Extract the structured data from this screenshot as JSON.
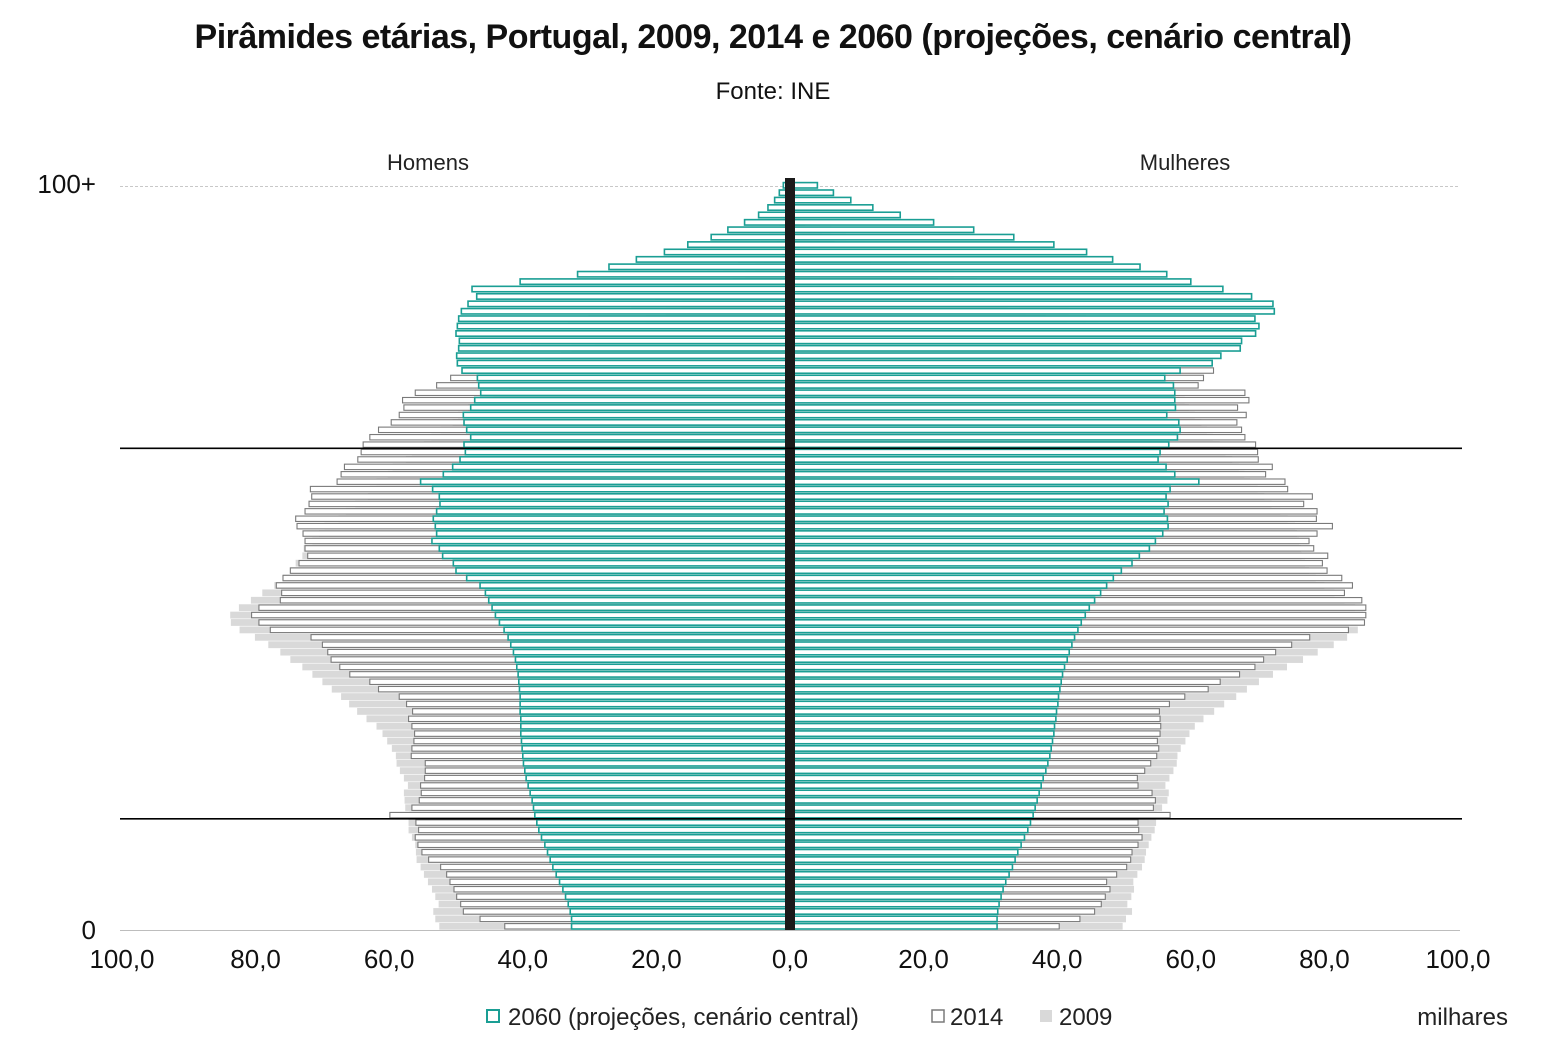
{
  "title": "Pirâmides etárias, Portugal, 2009, 2014 e 2060 (projeções, cenário central)",
  "subtitle": "Fonte: INE",
  "chart_data": {
    "type": "bar",
    "orientation": "horizontal-population-pyramid",
    "age_labels": {
      "top": "100+",
      "bottom": "0"
    },
    "sides": {
      "left": "Homens",
      "right": "Mulheres"
    },
    "x_ticks": [
      "100,0",
      "80,0",
      "60,0",
      "40,0",
      "20,0",
      "0,0",
      "20,0",
      "40,0",
      "60,0",
      "80,0",
      "100,0"
    ],
    "x_range": [
      0,
      100
    ],
    "unit": "milhares",
    "reference_lines_age": [
      15,
      65
    ],
    "ages": [
      0,
      1,
      2,
      3,
      4,
      5,
      6,
      7,
      8,
      9,
      10,
      11,
      12,
      13,
      14,
      15,
      16,
      17,
      18,
      19,
      20,
      21,
      22,
      23,
      24,
      25,
      26,
      27,
      28,
      29,
      30,
      31,
      32,
      33,
      34,
      35,
      36,
      37,
      38,
      39,
      40,
      41,
      42,
      43,
      44,
      45,
      46,
      47,
      48,
      49,
      50,
      51,
      52,
      53,
      54,
      55,
      56,
      57,
      58,
      59,
      60,
      61,
      62,
      63,
      64,
      65,
      66,
      67,
      68,
      69,
      70,
      71,
      72,
      73,
      74,
      75,
      76,
      77,
      78,
      79,
      80,
      81,
      82,
      83,
      84,
      85,
      86,
      87,
      88,
      89,
      90,
      91,
      92,
      93,
      94,
      95,
      96,
      97,
      98,
      99,
      100
    ],
    "series": [
      {
        "name": "2009",
        "style": "filled-gray",
        "men": [
          52.5,
          53.1,
          53.4,
          52.6,
          53.1,
          53.6,
          54.2,
          54.8,
          55.3,
          55.9,
          56.0,
          56.1,
          56.6,
          57.1,
          57.1,
          57.0,
          57.6,
          57.7,
          57.8,
          57.2,
          57.8,
          58.4,
          58.9,
          59.0,
          59.6,
          60.3,
          61.0,
          61.9,
          63.4,
          64.8,
          66.0,
          67.2,
          68.6,
          70.0,
          71.5,
          73.0,
          74.8,
          76.3,
          78.1,
          80.1,
          82.4,
          83.7,
          83.8,
          82.5,
          80.7,
          79.0,
          77.2,
          75.9,
          74.8,
          74.0,
          73.0,
          72.8,
          71.5,
          70.5,
          69.7,
          67.6,
          66.5,
          65.1,
          63.2,
          62.9,
          61.9,
          60.2,
          59.5,
          57.5,
          56.6,
          54.8,
          53.7,
          52.3,
          50.5,
          49.7,
          48.2,
          46.4,
          44.4,
          42.0,
          40.7,
          39.2,
          36.7,
          34.3,
          32.7,
          29.2,
          26.8,
          24.3,
          21.6,
          18.6,
          16.2,
          13.3,
          10.7,
          8.6,
          6.7,
          5.2,
          3.9,
          2.8,
          2.0,
          1.4,
          0.9,
          0.6,
          0.4,
          0.2,
          0.1,
          0.1,
          0.0
        ],
        "women": [
          49.8,
          50.3,
          51.2,
          50.5,
          51.1,
          51.5,
          51.4,
          52.0,
          52.7,
          53.1,
          53.3,
          53.7,
          54.1,
          54.6,
          54.8,
          54.9,
          55.7,
          56.5,
          56.7,
          56.2,
          56.8,
          57.4,
          57.9,
          58.0,
          58.5,
          59.2,
          59.8,
          60.6,
          61.9,
          63.5,
          65.0,
          66.8,
          68.4,
          70.2,
          72.3,
          74.4,
          76.8,
          79.0,
          81.4,
          83.4,
          85.0,
          86.0,
          85.8,
          84.6,
          83.0,
          81.5,
          80.0,
          78.7,
          77.7,
          77.1,
          76.6,
          76.5,
          76.2,
          75.9,
          75.6,
          74.5,
          73.4,
          72.1,
          71.0,
          70.0,
          68.9,
          68.0,
          67.2,
          66.2,
          65.2,
          64.3,
          63.3,
          62.4,
          61.6,
          60.6,
          59.7,
          59.1,
          58.3,
          57.1,
          56.5,
          55.6,
          53.9,
          52.3,
          51.0,
          49.3,
          48.4,
          46.2,
          44.3,
          41.7,
          38.9,
          35.3,
          31.7,
          28.0,
          24.5,
          20.8,
          17.6,
          14.2,
          11.2,
          8.4,
          6.2,
          4.5,
          3.1,
          2.1,
          1.4,
          0.9,
          0.5
        ]
      },
      {
        "name": "2014",
        "style": "outline-gray",
        "men": [
          42.7,
          46.4,
          48.9,
          49.3,
          49.9,
          50.3,
          50.9,
          51.4,
          52.3,
          54.1,
          55.1,
          55.7,
          56.1,
          55.6,
          56.0,
          59.9,
          56.6,
          55.5,
          55.2,
          55.3,
          54.7,
          54.6,
          54.6,
          56.7,
          56.6,
          56.3,
          56.2,
          56.6,
          57.1,
          56.5,
          57.4,
          58.5,
          61.6,
          62.9,
          65.9,
          67.4,
          68.7,
          69.2,
          70.0,
          71.7,
          77.8,
          79.5,
          80.6,
          79.5,
          76.3,
          76.1,
          76.9,
          75.9,
          74.8,
          73.5,
          72.2,
          72.6,
          72.6,
          72.9,
          73.8,
          74.0,
          72.6,
          72.0,
          71.6,
          71.8,
          67.8,
          67.2,
          66.7,
          64.7,
          64.2,
          63.9,
          62.9,
          61.6,
          59.7,
          58.5,
          57.8,
          58.0,
          56.1,
          52.9,
          50.8,
          48.4,
          46.5,
          43.5,
          41.5,
          38.7,
          36.3,
          33.2,
          30.1,
          26.8,
          23.7,
          20.1,
          17.3,
          14.9,
          12.3,
          9.9,
          7.7,
          5.8,
          4.3,
          3.0,
          2.2,
          1.5,
          0.9,
          0.6,
          0.4,
          0.2,
          0.1
        ],
        "women": [
          40.3,
          43.4,
          45.6,
          46.6,
          47.2,
          47.9,
          47.4,
          48.9,
          50.4,
          51.0,
          51.2,
          52.1,
          52.7,
          52.2,
          52.1,
          56.9,
          54.4,
          54.7,
          54.2,
          52.1,
          52.0,
          53.1,
          54.0,
          54.9,
          55.2,
          55.0,
          55.4,
          55.5,
          55.4,
          55.3,
          56.8,
          59.1,
          62.6,
          64.4,
          67.3,
          69.6,
          70.9,
          72.7,
          75.1,
          77.8,
          83.6,
          86.0,
          86.2,
          86.2,
          85.6,
          83.0,
          84.2,
          82.6,
          80.4,
          79.7,
          80.5,
          78.4,
          77.7,
          78.9,
          81.2,
          78.8,
          78.9,
          76.9,
          78.2,
          74.5,
          74.1,
          71.2,
          72.2,
          70.1,
          70.0,
          69.7,
          68.1,
          67.6,
          66.9,
          68.3,
          67.0,
          68.7,
          68.1,
          61.1,
          61.9,
          63.4,
          57.2,
          52.2,
          49.0,
          47.8,
          45.1,
          41.4,
          38.2,
          35.2,
          32.5,
          29.1,
          25.6,
          22.1,
          18.6,
          15.2,
          12.0,
          9.1,
          6.6,
          4.7,
          3.3,
          2.2,
          1.5,
          1.0,
          0.6,
          0.4,
          0.2
        ]
      },
      {
        "name": "2060 (projeções, cenário central)",
        "style": "outline-teal",
        "men": [
          32.7,
          32.7,
          32.9,
          33.2,
          33.6,
          34.0,
          34.5,
          35.0,
          35.5,
          35.9,
          36.3,
          36.7,
          37.2,
          37.6,
          37.9,
          38.2,
          38.4,
          38.6,
          38.9,
          39.2,
          39.5,
          39.7,
          39.9,
          40.0,
          40.1,
          40.2,
          40.3,
          40.3,
          40.3,
          40.4,
          40.4,
          40.4,
          40.5,
          40.6,
          40.7,
          40.9,
          41.1,
          41.4,
          41.8,
          42.2,
          42.8,
          43.5,
          44.1,
          44.6,
          45.1,
          45.6,
          46.4,
          48.4,
          50.0,
          50.4,
          52.0,
          52.5,
          53.6,
          52.9,
          53.1,
          53.4,
          52.9,
          52.4,
          52.5,
          53.5,
          55.3,
          51.9,
          50.5,
          49.4,
          48.6,
          48.8,
          47.8,
          48.4,
          48.8,
          48.9,
          47.8,
          47.2,
          46.3,
          46.6,
          46.8,
          49.1,
          49.8,
          49.9,
          49.6,
          49.5,
          50.0,
          49.8,
          49.6,
          49.2,
          48.2,
          46.9,
          47.6,
          40.4,
          31.8,
          27.1,
          23.0,
          18.8,
          15.3,
          11.8,
          9.3,
          6.8,
          4.7,
          3.3,
          2.3,
          1.6,
          1.0
        ],
        "women": [
          31.0,
          31.0,
          31.1,
          31.3,
          31.6,
          31.9,
          32.3,
          32.8,
          33.3,
          33.7,
          34.1,
          34.6,
          35.1,
          35.6,
          36.0,
          36.4,
          36.7,
          37.0,
          37.3,
          37.6,
          37.9,
          38.3,
          38.6,
          38.9,
          39.1,
          39.3,
          39.5,
          39.6,
          39.8,
          39.9,
          40.1,
          40.2,
          40.4,
          40.6,
          40.8,
          41.1,
          41.5,
          41.8,
          42.2,
          42.6,
          43.1,
          43.6,
          44.2,
          44.8,
          45.6,
          46.5,
          47.4,
          48.4,
          49.6,
          51.2,
          52.3,
          53.8,
          54.7,
          55.8,
          56.6,
          56.5,
          56.0,
          56.6,
          56.3,
          56.9,
          61.2,
          57.6,
          56.3,
          55.1,
          55.4,
          56.7,
          58.0,
          58.4,
          58.2,
          56.4,
          57.7,
          57.6,
          57.6,
          57.4,
          56.1,
          58.4,
          63.2,
          64.5,
          67.4,
          67.6,
          69.7,
          70.2,
          69.6,
          72.5,
          72.3,
          69.1,
          64.8,
          60.0,
          56.4,
          52.4,
          48.3,
          44.4,
          39.5,
          33.5,
          27.5,
          21.5,
          16.5,
          12.4,
          9.1,
          6.5,
          4.1
        ]
      }
    ],
    "legend": [
      "2060 (projeções, cenário central)",
      "2014",
      "2009"
    ]
  }
}
